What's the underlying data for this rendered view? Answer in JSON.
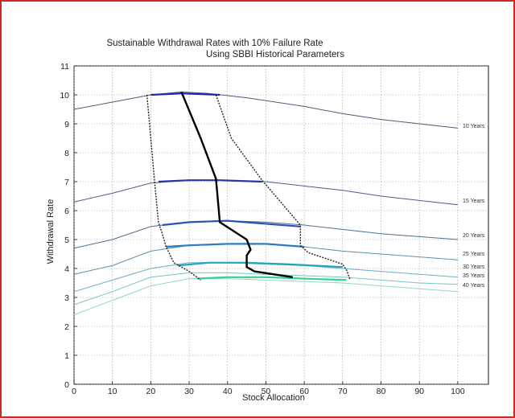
{
  "chart_data": {
    "type": "line",
    "title": "Sustainable Withdrawal Rates with 10% Failure Rate",
    "subtitle": "Using SBBI Historical Parameters",
    "xlabel": "Stock Allocation",
    "ylabel": "Withdrawal Rate",
    "xlim": [
      0,
      108
    ],
    "ylim": [
      0,
      11
    ],
    "xticks": [
      0,
      10,
      20,
      30,
      40,
      50,
      60,
      70,
      80,
      90,
      100
    ],
    "yticks": [
      0,
      1,
      2,
      3,
      4,
      5,
      6,
      7,
      8,
      9,
      10,
      11
    ],
    "grid": true,
    "series": [
      {
        "name": "10 Years",
        "color": "#55557a",
        "x": [
          0,
          10,
          20,
          28,
          35,
          45,
          60,
          70,
          80,
          90,
          100
        ],
        "y": [
          9.5,
          9.75,
          10.0,
          10.1,
          10.05,
          9.9,
          9.6,
          9.35,
          9.15,
          9.0,
          8.85
        ]
      },
      {
        "name": "15 Years",
        "color": "#4f5c88",
        "x": [
          0,
          10,
          20,
          30,
          40,
          50,
          60,
          70,
          80,
          90,
          100
        ],
        "y": [
          6.3,
          6.6,
          6.95,
          7.05,
          7.05,
          7.0,
          6.85,
          6.7,
          6.5,
          6.35,
          6.2
        ]
      },
      {
        "name": "20 Years",
        "color": "#4e6e90",
        "x": [
          0,
          10,
          20,
          30,
          40,
          50,
          60,
          70,
          80,
          90,
          100
        ],
        "y": [
          4.7,
          5.0,
          5.45,
          5.6,
          5.65,
          5.6,
          5.5,
          5.35,
          5.2,
          5.1,
          5.0
        ]
      },
      {
        "name": "25 Years",
        "color": "#5f8fae",
        "x": [
          0,
          10,
          20,
          30,
          40,
          50,
          60,
          70,
          80,
          90,
          100
        ],
        "y": [
          3.8,
          4.1,
          4.6,
          4.8,
          4.85,
          4.85,
          4.75,
          4.6,
          4.5,
          4.4,
          4.3
        ]
      },
      {
        "name": "30 Years",
        "color": "#6aaec4",
        "x": [
          0,
          10,
          20,
          30,
          40,
          50,
          60,
          70,
          80,
          90,
          100
        ],
        "y": [
          3.2,
          3.6,
          4.0,
          4.2,
          4.2,
          4.15,
          4.1,
          4.0,
          3.9,
          3.8,
          3.7
        ]
      },
      {
        "name": "35 Years",
        "color": "#79c3cc",
        "x": [
          0,
          10,
          20,
          30,
          40,
          50,
          60,
          70,
          80,
          90,
          100
        ],
        "y": [
          2.75,
          3.2,
          3.7,
          3.85,
          3.85,
          3.8,
          3.75,
          3.7,
          3.6,
          3.5,
          3.45
        ]
      },
      {
        "name": "40 Years",
        "color": "#95d4cf",
        "x": [
          0,
          10,
          20,
          30,
          40,
          50,
          60,
          70,
          80,
          90,
          100
        ],
        "y": [
          2.4,
          2.9,
          3.4,
          3.65,
          3.65,
          3.6,
          3.55,
          3.5,
          3.4,
          3.3,
          3.2
        ]
      }
    ],
    "highlight_segments": [
      {
        "series": "10 Years",
        "color": "#1e2aa8",
        "x": [
          20,
          28,
          38
        ],
        "y": [
          10.0,
          10.05,
          10.0
        ]
      },
      {
        "series": "15 Years",
        "color": "#2636a6",
        "x": [
          22,
          30,
          38,
          49
        ],
        "y": [
          7.0,
          7.05,
          7.05,
          7.0
        ]
      },
      {
        "series": "20 Years",
        "color": "#2c52b0",
        "x": [
          23,
          30,
          40,
          59
        ],
        "y": [
          5.5,
          5.6,
          5.65,
          5.45
        ]
      },
      {
        "series": "25 Years",
        "color": "#2a7cc0",
        "x": [
          24,
          30,
          40,
          50,
          60
        ],
        "y": [
          4.75,
          4.8,
          4.85,
          4.85,
          4.75
        ]
      },
      {
        "series": "30 Years",
        "color": "#1fa6bf",
        "x": [
          27,
          35,
          45,
          55,
          70
        ],
        "y": [
          4.1,
          4.2,
          4.2,
          4.15,
          4.05
        ]
      },
      {
        "series": "40 Years",
        "color": "#34d48f",
        "x": [
          32,
          40,
          50,
          60,
          71
        ],
        "y": [
          3.65,
          3.7,
          3.7,
          3.65,
          3.6
        ]
      }
    ],
    "optimal_path": {
      "color": "#000000",
      "x": [
        28,
        33,
        37,
        38,
        45,
        46,
        45,
        45,
        47,
        57
      ],
      "y": [
        10.1,
        8.5,
        7.1,
        5.6,
        5.0,
        4.65,
        4.45,
        4.05,
        3.9,
        3.7
      ]
    },
    "lower_bound": {
      "color": "#222222",
      "x": [
        19,
        20,
        21,
        22,
        23,
        24,
        26,
        30,
        33
      ],
      "y": [
        10.0,
        8.5,
        7.0,
        5.6,
        5.2,
        4.75,
        4.2,
        3.9,
        3.6
      ]
    },
    "upper_bound": {
      "color": "#222222",
      "x": [
        37,
        41,
        49,
        59,
        59,
        61,
        70,
        71,
        72
      ],
      "y": [
        10.0,
        8.5,
        7.05,
        5.5,
        4.8,
        4.55,
        4.15,
        3.95,
        3.6
      ]
    }
  }
}
